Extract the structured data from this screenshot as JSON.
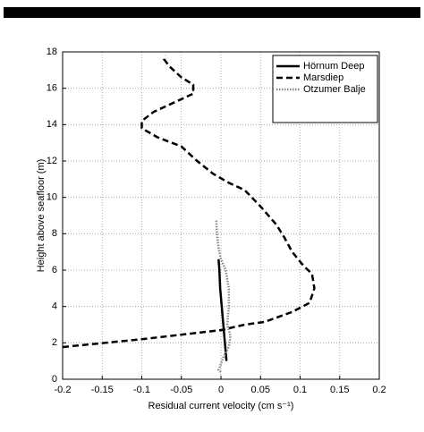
{
  "chart_data": {
    "type": "line",
    "xlabel": "Residual current velocity (cm s⁻¹)",
    "ylabel": "Height above seafloor (m)",
    "xlim": [
      -0.2,
      0.2
    ],
    "xticks": [
      -0.2,
      -0.15,
      -0.1,
      -0.05,
      0,
      0.05,
      0.1,
      0.15,
      0.2
    ],
    "ylim": [
      0,
      18
    ],
    "yticks": [
      0,
      2,
      4,
      6,
      8,
      10,
      12,
      14,
      16,
      18
    ],
    "grid": true,
    "legend": "top-right",
    "series": [
      {
        "name": "Hörnum Deep",
        "color": "#000000",
        "dash": "solid",
        "x": [
          0.007,
          0.005,
          0.003,
          0.001,
          -0.001,
          -0.002,
          -0.003
        ],
        "values": [
          1.0,
          2.0,
          3.0,
          4.0,
          5.0,
          6.0,
          6.6
        ]
      },
      {
        "name": "Marsdiep",
        "color": "#000000",
        "dash": "dashed",
        "x": [
          -0.2,
          -0.1,
          0,
          0.03,
          0.055,
          0.09,
          0.112,
          0.118,
          0.115,
          0.105,
          0.09,
          0.08,
          0.07,
          0.05,
          0.03,
          0.01,
          -0.01,
          -0.03,
          -0.05,
          -0.08,
          -0.1,
          -0.1,
          -0.085,
          -0.06,
          -0.035,
          -0.035,
          -0.05,
          -0.065,
          -0.072,
          -0.07
        ],
        "values": [
          1.77,
          2.2,
          2.7,
          3.0,
          3.15,
          3.7,
          4.2,
          5.0,
          5.8,
          6.2,
          7.0,
          7.8,
          8.5,
          9.5,
          10.4,
          10.8,
          11.3,
          12.0,
          12.8,
          13.3,
          13.8,
          14.2,
          14.7,
          15.2,
          15.7,
          16.2,
          16.6,
          17.2,
          17.6,
          17.8
        ]
      },
      {
        "name": "Otzumer Balje",
        "color": "#888888",
        "dash": "dotted",
        "x": [
          0.0,
          -0.003,
          0.003,
          0.01,
          0.012,
          0.008,
          0.01,
          0.01,
          0.006,
          0.0,
          -0.003,
          -0.005,
          -0.006
        ],
        "values": [
          0.4,
          0.5,
          1.2,
          1.8,
          2.4,
          3.0,
          4.0,
          5.0,
          6.0,
          6.6,
          7.2,
          8.0,
          8.8
        ]
      }
    ]
  }
}
